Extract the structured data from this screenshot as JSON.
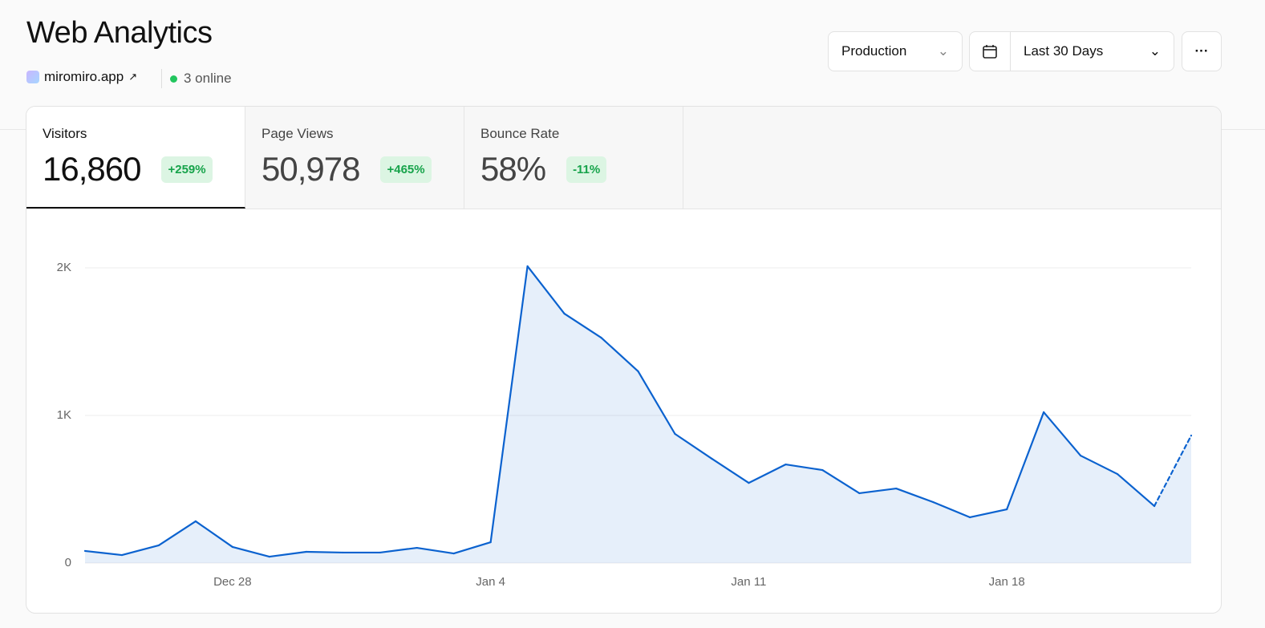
{
  "header": {
    "title": "Web Analytics",
    "site": "miromiro.app",
    "online": "3 online"
  },
  "controls": {
    "environment": "Production",
    "range": "Last 30 Days"
  },
  "stats": [
    {
      "label": "Visitors",
      "value": "16,860",
      "change": "+259%"
    },
    {
      "label": "Page Views",
      "value": "50,978",
      "change": "+465%"
    },
    {
      "label": "Bounce Rate",
      "value": "58%",
      "change": "-11%"
    }
  ],
  "chart_data": {
    "type": "line",
    "categories": [
      null,
      null,
      null,
      null,
      "Dec 28",
      null,
      null,
      null,
      null,
      null,
      null,
      "Jan 4",
      null,
      null,
      null,
      null,
      null,
      null,
      "Jan 11",
      null,
      null,
      null,
      null,
      null,
      null,
      "Jan 18",
      null,
      null,
      null,
      null,
      null
    ],
    "series": [
      {
        "color": "#0b62cf",
        "values": [
          82,
          54,
          120,
          283,
          109,
          43,
          76,
          71,
          71,
          103,
          65,
          141,
          2011,
          1690,
          1527,
          1299,
          875,
          707,
          543,
          668,
          630,
          473,
          505,
          413,
          310,
          364,
          1022,
          728,
          603,
          386,
          864
        ]
      }
    ],
    "ylim": [
      0,
      2000
    ],
    "yticks": [
      0,
      {
        "value": 1000,
        "label": "1K"
      },
      {
        "value": 2000,
        "label": "2K"
      }
    ],
    "grid": true
  }
}
